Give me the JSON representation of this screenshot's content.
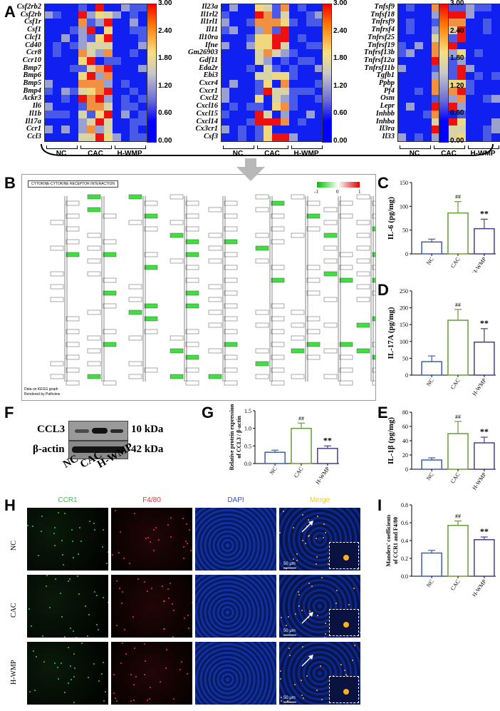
{
  "panels": {
    "A": "A",
    "B": "B",
    "C": "C",
    "D": "D",
    "E": "E",
    "F": "F",
    "G": "G",
    "H": "H",
    "I": "I"
  },
  "heatmaps": [
    {
      "genes": [
        "Csf2rb2",
        "Csf2rb",
        "Csf1r",
        "Csf1",
        "Clcf1",
        "Cd40",
        "Ccr8",
        "Ccr10",
        "Bmp7",
        "Bmp6",
        "Bmp5",
        "Bmp4",
        "Ackr3",
        "Il6",
        "Il1b",
        "Il17a",
        "Ccr1",
        "Ccl3"
      ]
    },
    {
      "genes": [
        "Il23a",
        "Il1rl2",
        "Il1rl1",
        "Il11",
        "Il10ra",
        "Ifne",
        "Gm26903",
        "Gdf11",
        "Eda2r",
        "Ebi3",
        "Cxcr4",
        "Cxcr1",
        "Cxcl2",
        "Cxcl16",
        "Cxcl15",
        "Cxcl14",
        "Cx3cr1",
        "Csf3"
      ]
    },
    {
      "genes": [
        "Tnfsf9",
        "Tnfsf18",
        "Tnfrsf9",
        "Tnfrsf4",
        "Tnfrsf25",
        "Tnfrsf19",
        "Tnfrsf13b",
        "Tnfrsf12a",
        "Tnfrsf11b",
        "Tgfb1",
        "Ppbp",
        "Pf4",
        "Osm",
        "Lepr",
        "Inhbb",
        "Inhba",
        "Il3ra",
        "Il33"
      ]
    }
  ],
  "colorbar": {
    "ticks": [
      "3.00",
      "2.40",
      "1.80",
      "1.20",
      "0.60",
      "0.00"
    ],
    "colors": [
      "#ff0000",
      "#ffe060",
      "#c8c8c8",
      "#0000ff"
    ]
  },
  "groups": [
    "NC",
    "CAC",
    "H-WMP"
  ],
  "kegg": {
    "title": "CYTOKINE-CYTOKINE RECEPTOR INTERACTION",
    "footer1": "Data on KEGG graph",
    "footer2": "Rendered by Pathview",
    "legend": [
      "-1",
      "0",
      "1"
    ]
  },
  "western": {
    "bands": [
      {
        "name": "CCL3",
        "size": "10 kDa"
      },
      {
        "name": "β-actin",
        "size": "42 kDa"
      }
    ],
    "lanes": [
      "NC",
      "CAC",
      "H-WMP"
    ]
  },
  "chart_data": [
    {
      "id": "C",
      "type": "bar",
      "categories": [
        "NC",
        "CAC",
        "H-WMP"
      ],
      "values": [
        25,
        86,
        53
      ],
      "errors": [
        6,
        24,
        20
      ],
      "ylabel": "IL-6 (pg/mg)",
      "ylim": [
        0,
        150
      ],
      "yticks": [
        "0",
        "50",
        "100",
        "150"
      ],
      "annotations": [
        "",
        "##",
        "**"
      ],
      "colors": [
        "#3a5ea8",
        "#6a9a3c",
        "#4b3a8a"
      ]
    },
    {
      "id": "D",
      "type": "bar",
      "categories": [
        "NC",
        "CAC",
        "H-WMP"
      ],
      "values": [
        40,
        163,
        98
      ],
      "errors": [
        17,
        32,
        40
      ],
      "ylabel": "IL-17A (pg/mg)",
      "ylim": [
        0,
        250
      ],
      "yticks": [
        "0",
        "50",
        "100",
        "150",
        "200",
        "250"
      ],
      "annotations": [
        "",
        "##",
        "**"
      ],
      "colors": [
        "#3a5ea8",
        "#6a9a3c",
        "#4b3a8a"
      ]
    },
    {
      "id": "E",
      "type": "bar",
      "categories": [
        "NC",
        "CAC",
        "H-WMP"
      ],
      "values": [
        13,
        50,
        37
      ],
      "errors": [
        3,
        17,
        8
      ],
      "ylabel": "IL-1β (pg/mg)",
      "ylim": [
        0,
        80
      ],
      "yticks": [
        "0",
        "20",
        "40",
        "60",
        "80"
      ],
      "annotations": [
        "",
        "##",
        "**"
      ],
      "colors": [
        "#3a5ea8",
        "#6a9a3c",
        "#4b3a8a"
      ]
    },
    {
      "id": "G",
      "type": "bar",
      "categories": [
        "NC",
        "CAC",
        "H-WMP"
      ],
      "values": [
        0.32,
        1.0,
        0.43
      ],
      "errors": [
        0.06,
        0.15,
        0.07
      ],
      "ylabel": "Relative protein expression of CCL3 / β-actin",
      "ylim": [
        0,
        1.5
      ],
      "yticks": [
        "0.0",
        "0.5",
        "1.0",
        "1.5"
      ],
      "annotations": [
        "",
        "##",
        "**"
      ],
      "colors": [
        "#3a5ea8",
        "#6a9a3c",
        "#4b3a8a"
      ]
    },
    {
      "id": "I",
      "type": "bar",
      "categories": [
        "NC",
        "CAC",
        "H-WMP"
      ],
      "values": [
        0.26,
        0.57,
        0.41
      ],
      "errors": [
        0.03,
        0.05,
        0.03
      ],
      "ylabel": "Manders' coefficients of CCR1 and F4/80",
      "ylim": [
        0,
        0.8
      ],
      "yticks": [
        "0.0",
        "0.2",
        "0.4",
        "0.6",
        "0.8"
      ],
      "annotations": [
        "",
        "##",
        "**"
      ],
      "colors": [
        "#3a5ea8",
        "#6a9a3c",
        "#4b3a8a"
      ]
    }
  ],
  "micro": {
    "columns": [
      "CCR1",
      "F4/80",
      "DAPI",
      "Merge"
    ],
    "column_colors": [
      "#2ecc40",
      "#e03030",
      "#3050e0",
      "#e8d020"
    ],
    "rows": [
      "NC",
      "CAC",
      "H-WMP"
    ],
    "scalebar": "50 μm"
  }
}
